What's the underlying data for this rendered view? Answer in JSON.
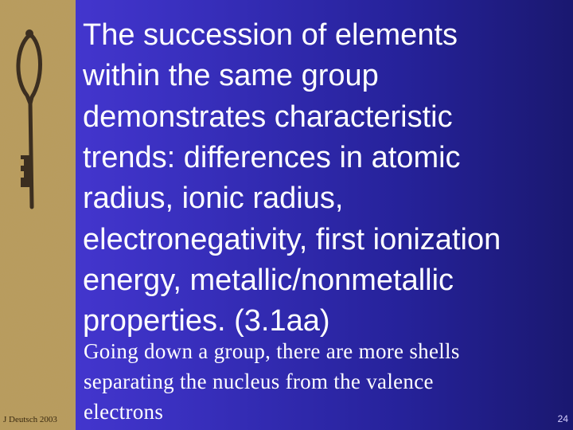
{
  "slide": {
    "title_lines": [
      "The succession of elements",
      "within the same group",
      "demonstrates characteristic",
      "trends: differences in atomic",
      "radius, ionic radius,",
      "electronegativity, first ionization",
      "energy, metallic/nonmetallic",
      "properties. (3.1aa)"
    ],
    "body_lines": [
      "Going down a group, there are more shells",
      "separating the nucleus from the valence",
      "electrons"
    ],
    "footer": "J Deutsch 2003",
    "page_number": "24"
  }
}
